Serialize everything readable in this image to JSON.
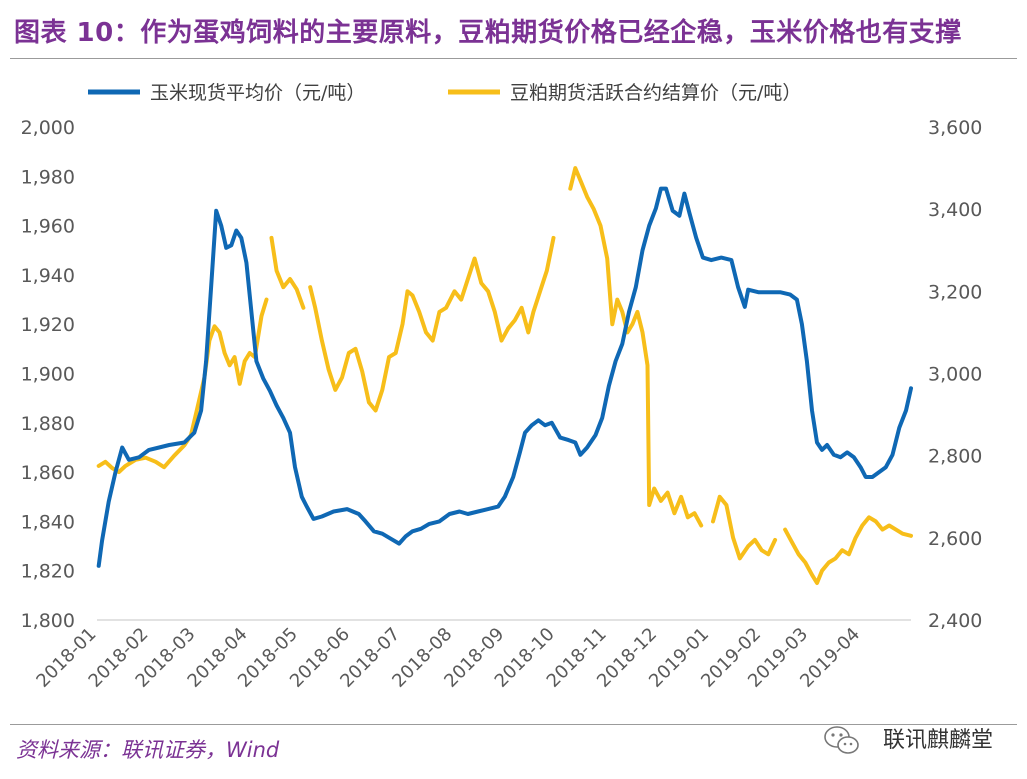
{
  "header": {
    "title": "图表 10：作为蛋鸡饲料的主要原料，豆粕期货价格已经企稳，玉米价格也有支撑"
  },
  "footer": {
    "source": "资料来源：联讯证券，Wind",
    "watermark": "联讯麒麟堂"
  },
  "colors": {
    "title": "#7B3294",
    "corn": "#0F68B4",
    "soymeal": "#F7BE1A",
    "axis": "#595959"
  },
  "icons": {
    "watermark": "wechat-icon"
  },
  "chart_data": {
    "type": "line",
    "title": "",
    "xlabel": "",
    "ylabel_left": "",
    "ylabel_right": "",
    "grid": false,
    "legend_position": "top",
    "x_categories": [
      "2018-01",
      "2018-02",
      "2018-03",
      "2018-04",
      "2018-05",
      "2018-06",
      "2018-07",
      "2018-08",
      "2018-09",
      "2018-10",
      "2018-11",
      "2018-12",
      "2019-01",
      "2019-02",
      "2019-03",
      "2019-04"
    ],
    "y_left": {
      "min": 1800,
      "max": 2000,
      "ticks": [
        "1,800",
        "1,820",
        "1,840",
        "1,860",
        "1,880",
        "1,900",
        "1,920",
        "1,940",
        "1,960",
        "1,980",
        "2,000"
      ]
    },
    "y_right": {
      "min": 2400,
      "max": 3600,
      "ticks": [
        "2,400",
        "2,600",
        "2,800",
        "3,000",
        "3,200",
        "3,400",
        "3,600"
      ]
    },
    "series": [
      {
        "name": "玉米现货平均价（元/吨）",
        "axis": "left",
        "points": [
          [
            "2018-01-02",
            1822
          ],
          [
            "2018-01-04",
            1832
          ],
          [
            "2018-01-08",
            1848
          ],
          [
            "2018-01-12",
            1860
          ],
          [
            "2018-01-16",
            1870
          ],
          [
            "2018-01-20",
            1865
          ],
          [
            "2018-01-26",
            1866
          ],
          [
            "2018-02-01",
            1869
          ],
          [
            "2018-02-07",
            1870
          ],
          [
            "2018-02-13",
            1871
          ],
          [
            "2018-02-22",
            1872
          ],
          [
            "2018-02-28",
            1876
          ],
          [
            "2018-03-04",
            1885
          ],
          [
            "2018-03-07",
            1905
          ],
          [
            "2018-03-10",
            1935
          ],
          [
            "2018-03-13",
            1966
          ],
          [
            "2018-03-16",
            1960
          ],
          [
            "2018-03-19",
            1951
          ],
          [
            "2018-03-22",
            1952
          ],
          [
            "2018-03-25",
            1958
          ],
          [
            "2018-03-28",
            1955
          ],
          [
            "2018-03-31",
            1945
          ],
          [
            "2018-04-03",
            1925
          ],
          [
            "2018-04-06",
            1905
          ],
          [
            "2018-04-10",
            1898
          ],
          [
            "2018-04-14",
            1893
          ],
          [
            "2018-04-18",
            1887
          ],
          [
            "2018-04-22",
            1882
          ],
          [
            "2018-04-26",
            1876
          ],
          [
            "2018-04-29",
            1862
          ],
          [
            "2018-05-03",
            1850
          ],
          [
            "2018-05-06",
            1846
          ],
          [
            "2018-05-10",
            1841
          ],
          [
            "2018-05-15",
            1842
          ],
          [
            "2018-05-22",
            1844
          ],
          [
            "2018-05-30",
            1845
          ],
          [
            "2018-06-06",
            1843
          ],
          [
            "2018-06-10",
            1840
          ],
          [
            "2018-06-15",
            1836
          ],
          [
            "2018-06-20",
            1835
          ],
          [
            "2018-06-25",
            1833
          ],
          [
            "2018-06-30",
            1831
          ],
          [
            "2018-07-04",
            1834
          ],
          [
            "2018-07-08",
            1836
          ],
          [
            "2018-07-13",
            1837
          ],
          [
            "2018-07-18",
            1839
          ],
          [
            "2018-07-24",
            1840
          ],
          [
            "2018-07-30",
            1843
          ],
          [
            "2018-08-05",
            1844
          ],
          [
            "2018-08-10",
            1843
          ],
          [
            "2018-08-16",
            1844
          ],
          [
            "2018-08-22",
            1845
          ],
          [
            "2018-08-28",
            1846
          ],
          [
            "2018-09-01",
            1850
          ],
          [
            "2018-09-06",
            1858
          ],
          [
            "2018-09-10",
            1868
          ],
          [
            "2018-09-13",
            1876
          ],
          [
            "2018-09-17",
            1879
          ],
          [
            "2018-09-21",
            1881
          ],
          [
            "2018-09-25",
            1879
          ],
          [
            "2018-09-29",
            1880
          ],
          [
            "2018-10-04",
            1874
          ],
          [
            "2018-10-09",
            1873
          ],
          [
            "2018-10-13",
            1872
          ],
          [
            "2018-10-16",
            1867
          ],
          [
            "2018-10-20",
            1870
          ],
          [
            "2018-10-25",
            1875
          ],
          [
            "2018-10-29",
            1882
          ],
          [
            "2018-11-02",
            1895
          ],
          [
            "2018-11-06",
            1905
          ],
          [
            "2018-11-10",
            1912
          ],
          [
            "2018-11-14",
            1925
          ],
          [
            "2018-11-18",
            1935
          ],
          [
            "2018-11-22",
            1950
          ],
          [
            "2018-11-26",
            1960
          ],
          [
            "2018-11-30",
            1967
          ],
          [
            "2018-12-03",
            1975
          ],
          [
            "2018-12-06",
            1975
          ],
          [
            "2018-12-10",
            1966
          ],
          [
            "2018-12-14",
            1964
          ],
          [
            "2018-12-17",
            1973
          ],
          [
            "2018-12-20",
            1965
          ],
          [
            "2018-12-24",
            1955
          ],
          [
            "2018-12-28",
            1947
          ],
          [
            "2019-01-02",
            1946
          ],
          [
            "2019-01-08",
            1947
          ],
          [
            "2019-01-14",
            1946
          ],
          [
            "2019-01-18",
            1935
          ],
          [
            "2019-01-22",
            1927
          ],
          [
            "2019-01-24",
            1934
          ],
          [
            "2019-01-30",
            1933
          ],
          [
            "2019-02-05",
            1933
          ],
          [
            "2019-02-12",
            1933
          ],
          [
            "2019-02-18",
            1932
          ],
          [
            "2019-02-22",
            1930
          ],
          [
            "2019-02-25",
            1920
          ],
          [
            "2019-02-28",
            1905
          ],
          [
            "2019-03-03",
            1885
          ],
          [
            "2019-03-06",
            1872
          ],
          [
            "2019-03-09",
            1869
          ],
          [
            "2019-03-12",
            1871
          ],
          [
            "2019-03-16",
            1867
          ],
          [
            "2019-03-20",
            1866
          ],
          [
            "2019-03-24",
            1868
          ],
          [
            "2019-03-28",
            1866
          ],
          [
            "2019-04-01",
            1862
          ],
          [
            "2019-04-04",
            1858
          ],
          [
            "2019-04-08",
            1858
          ],
          [
            "2019-04-12",
            1860
          ],
          [
            "2019-04-16",
            1862
          ],
          [
            "2019-04-20",
            1867
          ],
          [
            "2019-04-24",
            1878
          ],
          [
            "2019-04-28",
            1885
          ],
          [
            "2019-05-01",
            1894
          ]
        ]
      },
      {
        "name": "豆粕期货活跃合约结算价（元/吨）",
        "axis": "right",
        "points": [
          [
            "2018-01-02",
            2775
          ],
          [
            "2018-01-06",
            2785
          ],
          [
            "2018-01-10",
            2770
          ],
          [
            "2018-01-14",
            2760
          ],
          [
            "2018-01-18",
            2775
          ],
          [
            "2018-01-24",
            2790
          ],
          [
            "2018-01-30",
            2795
          ],
          [
            "2018-02-05",
            2785
          ],
          [
            "2018-02-10",
            2772
          ],
          [
            "2018-02-16",
            2800
          ],
          [
            "2018-02-22",
            2825
          ],
          [
            "2018-02-26",
            2850
          ],
          [
            "2018-03-02",
            2920
          ],
          [
            "2018-03-06",
            2990
          ],
          [
            "2018-03-09",
            3080
          ],
          [
            "2018-03-12",
            3115
          ],
          [
            "2018-03-15",
            3100
          ],
          [
            "2018-03-18",
            3050
          ],
          [
            "2018-03-21",
            3020
          ],
          [
            "2018-03-24",
            3040
          ],
          [
            "2018-03-27",
            2975
          ],
          [
            "2018-03-30",
            3030
          ],
          [
            "2018-04-02",
            3050
          ],
          [
            "2018-04-05",
            3040
          ],
          [
            "2018-04-09",
            3140
          ],
          [
            "2018-04-12",
            3180
          ],
          [
            null,
            null
          ],
          [
            "2018-04-15",
            3330
          ],
          [
            "2018-04-18",
            3250
          ],
          [
            "2018-04-22",
            3210
          ],
          [
            "2018-04-26",
            3230
          ],
          [
            "2018-04-30",
            3205
          ],
          [
            "2018-05-04",
            3160
          ],
          [
            null,
            null
          ],
          [
            "2018-05-08",
            3210
          ],
          [
            "2018-05-11",
            3160
          ],
          [
            "2018-05-15",
            3080
          ],
          [
            "2018-05-19",
            3010
          ],
          [
            "2018-05-23",
            2960
          ],
          [
            "2018-05-27",
            2990
          ],
          [
            "2018-05-31",
            3050
          ],
          [
            "2018-06-04",
            3060
          ],
          [
            "2018-06-08",
            3005
          ],
          [
            "2018-06-12",
            2930
          ],
          [
            "2018-06-16",
            2910
          ],
          [
            "2018-06-20",
            2960
          ],
          [
            "2018-06-24",
            3040
          ],
          [
            "2018-06-28",
            3050
          ],
          [
            "2018-07-02",
            3120
          ],
          [
            "2018-07-05",
            3200
          ],
          [
            "2018-07-08",
            3190
          ],
          [
            "2018-07-12",
            3150
          ],
          [
            "2018-07-16",
            3100
          ],
          [
            "2018-07-20",
            3080
          ],
          [
            "2018-07-24",
            3150
          ],
          [
            "2018-07-28",
            3160
          ],
          [
            "2018-08-02",
            3200
          ],
          [
            "2018-08-06",
            3180
          ],
          [
            "2018-08-10",
            3230
          ],
          [
            "2018-08-14",
            3280
          ],
          [
            "2018-08-18",
            3220
          ],
          [
            "2018-08-22",
            3200
          ],
          [
            "2018-08-26",
            3150
          ],
          [
            "2018-08-30",
            3080
          ],
          [
            "2018-09-03",
            3110
          ],
          [
            "2018-09-07",
            3130
          ],
          [
            "2018-09-11",
            3160
          ],
          [
            "2018-09-15",
            3100
          ],
          [
            "2018-09-18",
            3150
          ],
          [
            "2018-09-22",
            3200
          ],
          [
            "2018-09-26",
            3250
          ],
          [
            "2018-09-30",
            3330
          ],
          [
            null,
            null
          ],
          [
            "2018-10-10",
            3450
          ],
          [
            "2018-10-13",
            3500
          ],
          [
            "2018-10-16",
            3470
          ],
          [
            "2018-10-20",
            3430
          ],
          [
            "2018-10-24",
            3400
          ],
          [
            "2018-10-28",
            3360
          ],
          [
            "2018-11-01",
            3280
          ],
          [
            "2018-11-04",
            3120
          ],
          [
            "2018-11-07",
            3180
          ],
          [
            "2018-11-10",
            3150
          ],
          [
            "2018-11-13",
            3100
          ],
          [
            "2018-11-16",
            3120
          ],
          [
            "2018-11-19",
            3150
          ],
          [
            "2018-11-22",
            3100
          ],
          [
            "2018-11-25",
            3020
          ],
          [
            "2018-11-26",
            2680
          ],
          [
            "2018-11-29",
            2720
          ],
          [
            "2018-12-03",
            2690
          ],
          [
            "2018-12-07",
            2710
          ],
          [
            "2018-12-11",
            2660
          ],
          [
            "2018-12-15",
            2700
          ],
          [
            "2018-12-19",
            2650
          ],
          [
            "2018-12-23",
            2660
          ],
          [
            "2018-12-27",
            2630
          ],
          [
            null,
            null
          ],
          [
            "2019-01-03",
            2640
          ],
          [
            "2019-01-07",
            2700
          ],
          [
            "2019-01-11",
            2680
          ],
          [
            "2019-01-15",
            2600
          ],
          [
            "2019-01-19",
            2550
          ],
          [
            "2019-01-24",
            2580
          ],
          [
            "2019-01-28",
            2595
          ],
          [
            "2019-02-01",
            2570
          ],
          [
            "2019-02-05",
            2560
          ],
          [
            "2019-02-09",
            2595
          ],
          [
            null,
            null
          ],
          [
            "2019-02-15",
            2620
          ],
          [
            "2019-02-19",
            2590
          ],
          [
            "2019-02-23",
            2560
          ],
          [
            "2019-02-27",
            2540
          ],
          [
            "2019-03-03",
            2510
          ],
          [
            "2019-03-06",
            2490
          ],
          [
            "2019-03-09",
            2520
          ],
          [
            "2019-03-13",
            2540
          ],
          [
            "2019-03-17",
            2550
          ],
          [
            "2019-03-21",
            2570
          ],
          [
            "2019-03-25",
            2560
          ],
          [
            "2019-03-29",
            2600
          ],
          [
            "2019-04-02",
            2630
          ],
          [
            "2019-04-06",
            2650
          ],
          [
            "2019-04-10",
            2640
          ],
          [
            "2019-04-14",
            2620
          ],
          [
            "2019-04-18",
            2630
          ],
          [
            "2019-04-22",
            2620
          ],
          [
            "2019-04-26",
            2610
          ],
          [
            "2019-05-01",
            2605
          ]
        ]
      }
    ]
  }
}
